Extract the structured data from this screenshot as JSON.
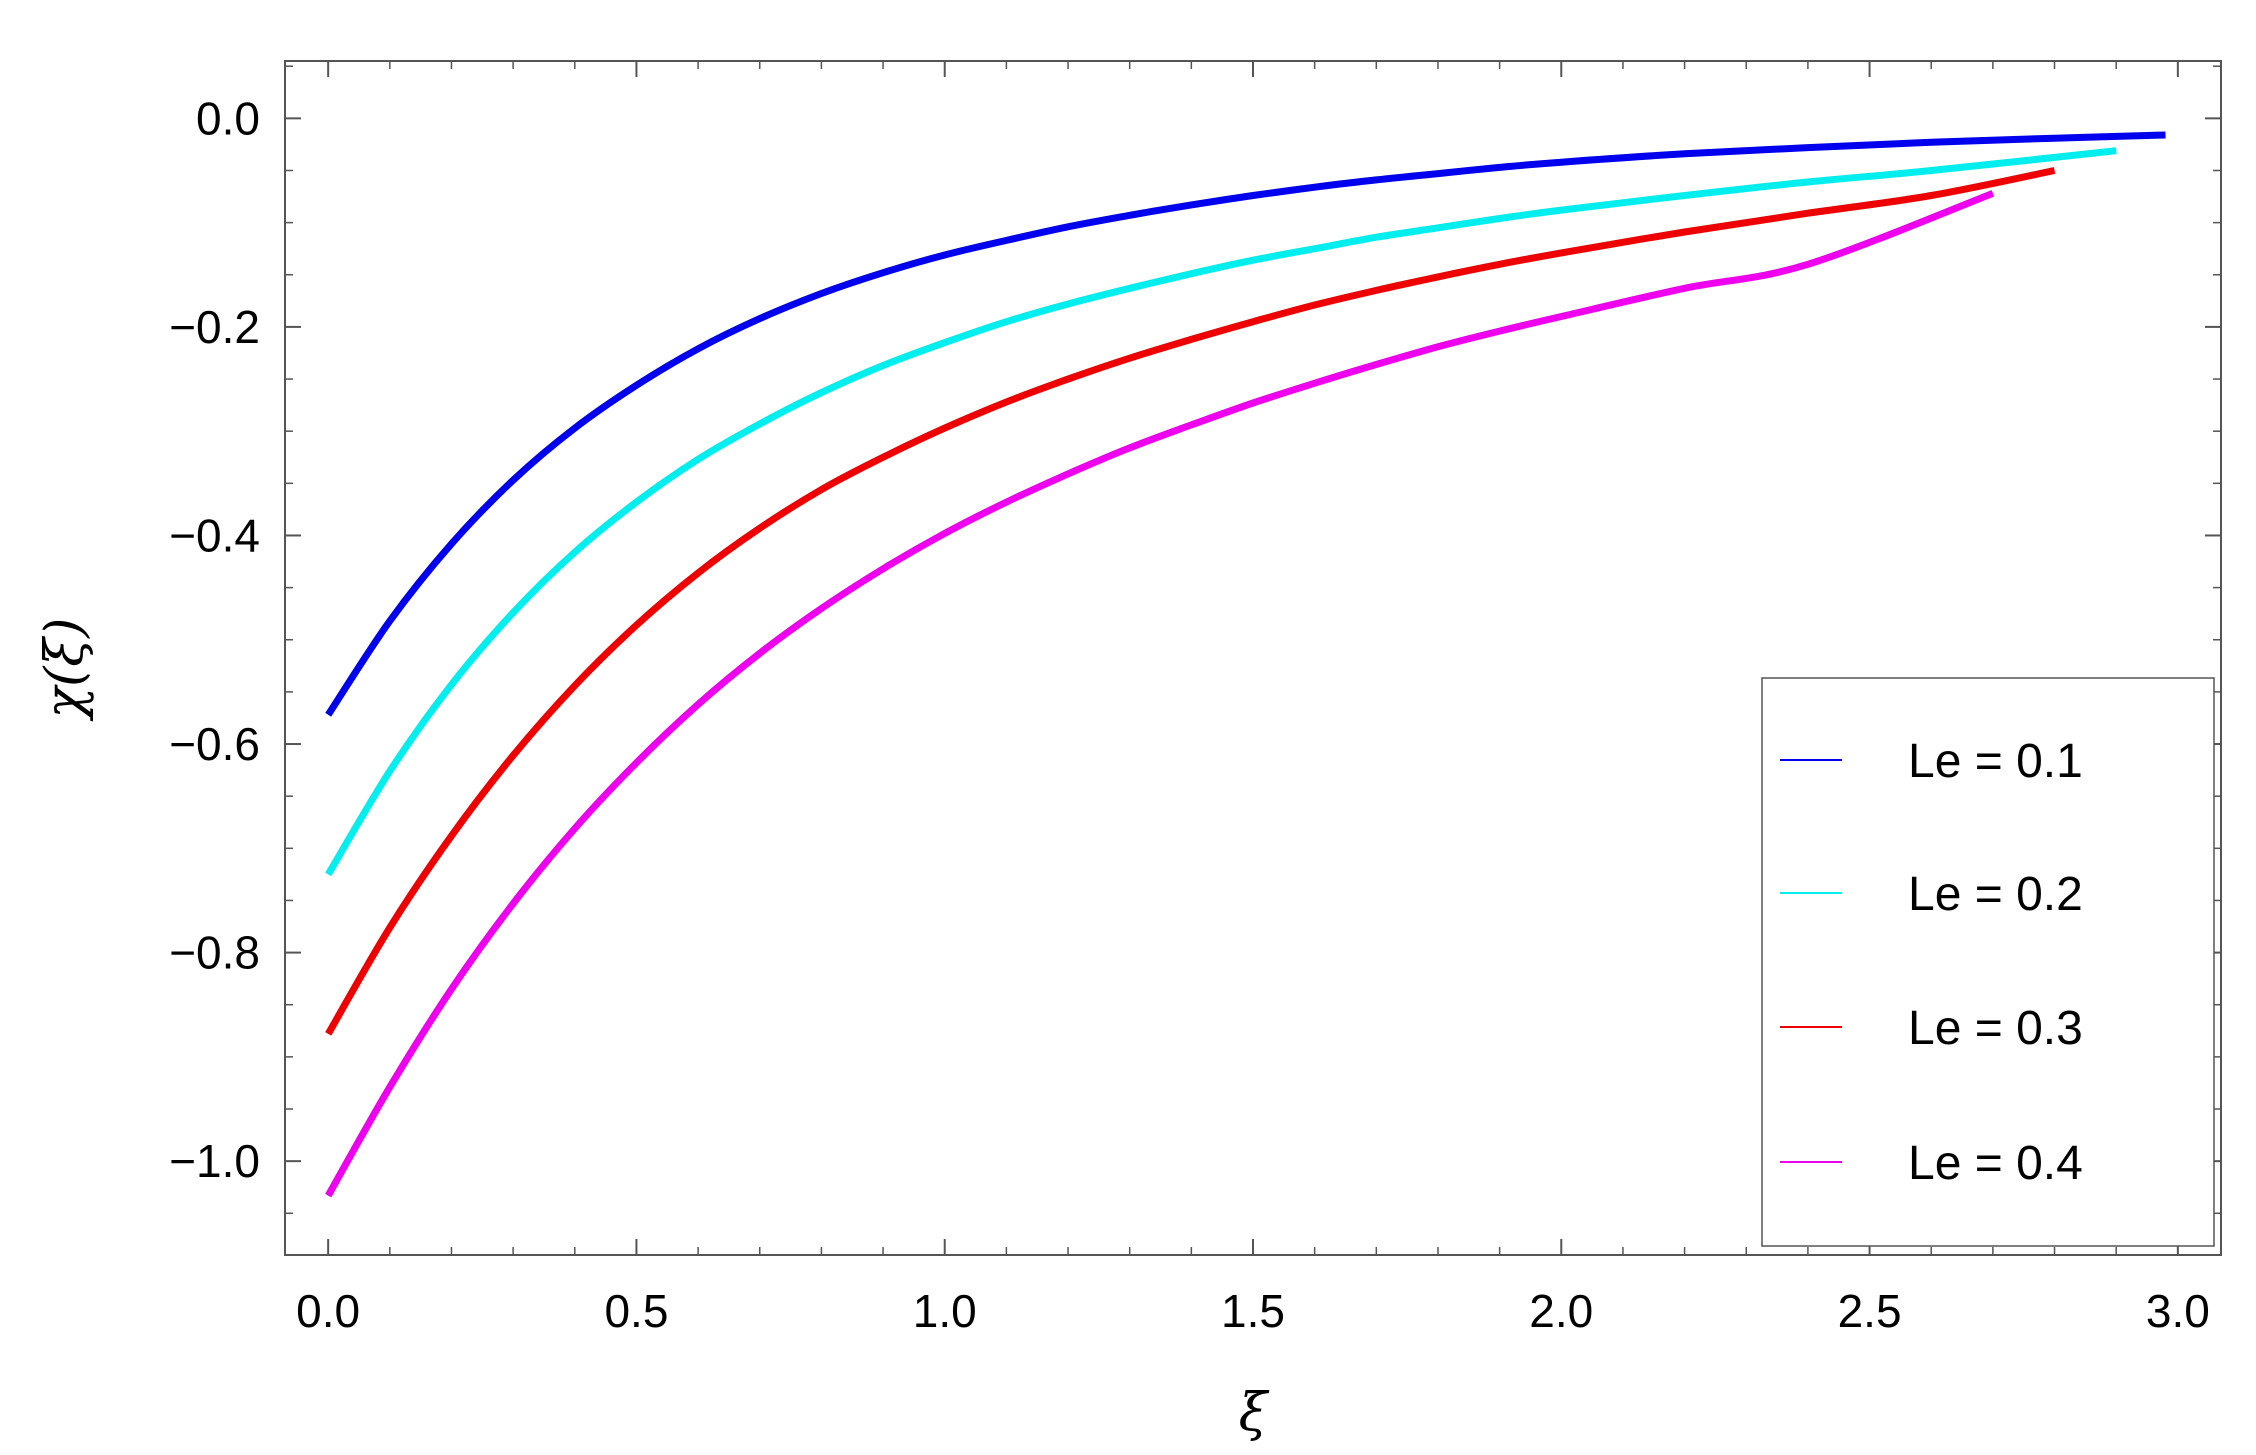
{
  "chart_data": {
    "type": "line",
    "title": "",
    "xlabel": "ξ",
    "ylabel": "χ(ξ)",
    "xlim": [
      -0.07,
      3.07
    ],
    "ylim": [
      -1.09,
      0.055
    ],
    "x_ticks": [
      0.0,
      0.5,
      1.0,
      1.5,
      2.0,
      2.5,
      3.0
    ],
    "x_tick_labels": [
      "0.0",
      "0.5",
      "1.0",
      "1.5",
      "2.0",
      "2.5",
      "3.0"
    ],
    "y_ticks": [
      0.0,
      -0.2,
      -0.4,
      -0.6,
      -0.8,
      -1.0
    ],
    "y_tick_labels": [
      "0.0",
      "−0.2",
      "−0.4",
      "−0.6",
      "−0.8",
      "−1.0"
    ],
    "grid": false,
    "legend": "bottom-right",
    "series": [
      {
        "name": "Le = 0.1",
        "color": "#0000ee",
        "x": [
          0.0,
          0.1,
          0.2,
          0.3,
          0.4,
          0.5,
          0.6,
          0.7,
          0.8,
          0.9,
          1.0,
          1.1,
          1.2,
          1.3,
          1.4,
          1.5,
          1.6,
          1.7,
          1.8,
          1.9,
          2.0,
          2.2,
          2.4,
          2.6,
          2.8,
          2.98
        ],
        "y": [
          -0.572,
          -0.482,
          -0.408,
          -0.347,
          -0.297,
          -0.256,
          -0.221,
          -0.192,
          -0.168,
          -0.148,
          -0.131,
          -0.117,
          -0.104,
          -0.093,
          -0.083,
          -0.074,
          -0.066,
          -0.059,
          -0.053,
          -0.047,
          -0.042,
          -0.034,
          -0.028,
          -0.023,
          -0.019,
          -0.016
        ]
      },
      {
        "name": "Le = 0.2",
        "color": "#00eeee",
        "x": [
          0.0,
          0.1,
          0.2,
          0.3,
          0.4,
          0.5,
          0.6,
          0.7,
          0.8,
          0.9,
          1.0,
          1.1,
          1.2,
          1.3,
          1.4,
          1.5,
          1.6,
          1.7,
          1.8,
          1.9,
          2.0,
          2.2,
          2.4,
          2.6,
          2.9
        ],
        "y": [
          -0.725,
          -0.626,
          -0.543,
          -0.474,
          -0.416,
          -0.368,
          -0.327,
          -0.293,
          -0.263,
          -0.237,
          -0.215,
          -0.195,
          -0.178,
          -0.163,
          -0.149,
          -0.136,
          -0.125,
          -0.114,
          -0.105,
          -0.096,
          -0.088,
          -0.074,
          -0.061,
          -0.05,
          -0.031
        ]
      },
      {
        "name": "Le = 0.3",
        "color": "#ee0000",
        "x": [
          0.0,
          0.1,
          0.2,
          0.3,
          0.4,
          0.5,
          0.6,
          0.7,
          0.8,
          0.9,
          1.0,
          1.1,
          1.2,
          1.3,
          1.4,
          1.5,
          1.6,
          1.7,
          1.8,
          1.9,
          2.0,
          2.2,
          2.4,
          2.6,
          2.8
        ],
        "y": [
          -0.878,
          -0.776,
          -0.688,
          -0.611,
          -0.544,
          -0.486,
          -0.436,
          -0.393,
          -0.356,
          -0.325,
          -0.297,
          -0.272,
          -0.25,
          -0.23,
          -0.212,
          -0.195,
          -0.179,
          -0.165,
          -0.152,
          -0.14,
          -0.129,
          -0.109,
          -0.091,
          -0.074,
          -0.05
        ]
      },
      {
        "name": "Le = 0.4",
        "color": "#ee00ee",
        "x": [
          0.0,
          0.1,
          0.2,
          0.3,
          0.4,
          0.5,
          0.6,
          0.7,
          0.8,
          0.9,
          1.0,
          1.1,
          1.2,
          1.3,
          1.4,
          1.5,
          1.6,
          1.7,
          1.8,
          1.9,
          2.0,
          2.2,
          2.4,
          2.7
        ],
        "y": [
          -1.033,
          -0.929,
          -0.835,
          -0.753,
          -0.681,
          -0.618,
          -0.562,
          -0.513,
          -0.47,
          -0.432,
          -0.398,
          -0.368,
          -0.341,
          -0.316,
          -0.294,
          -0.273,
          -0.254,
          -0.236,
          -0.219,
          -0.204,
          -0.19,
          -0.163,
          -0.14,
          -0.072
        ]
      }
    ]
  }
}
